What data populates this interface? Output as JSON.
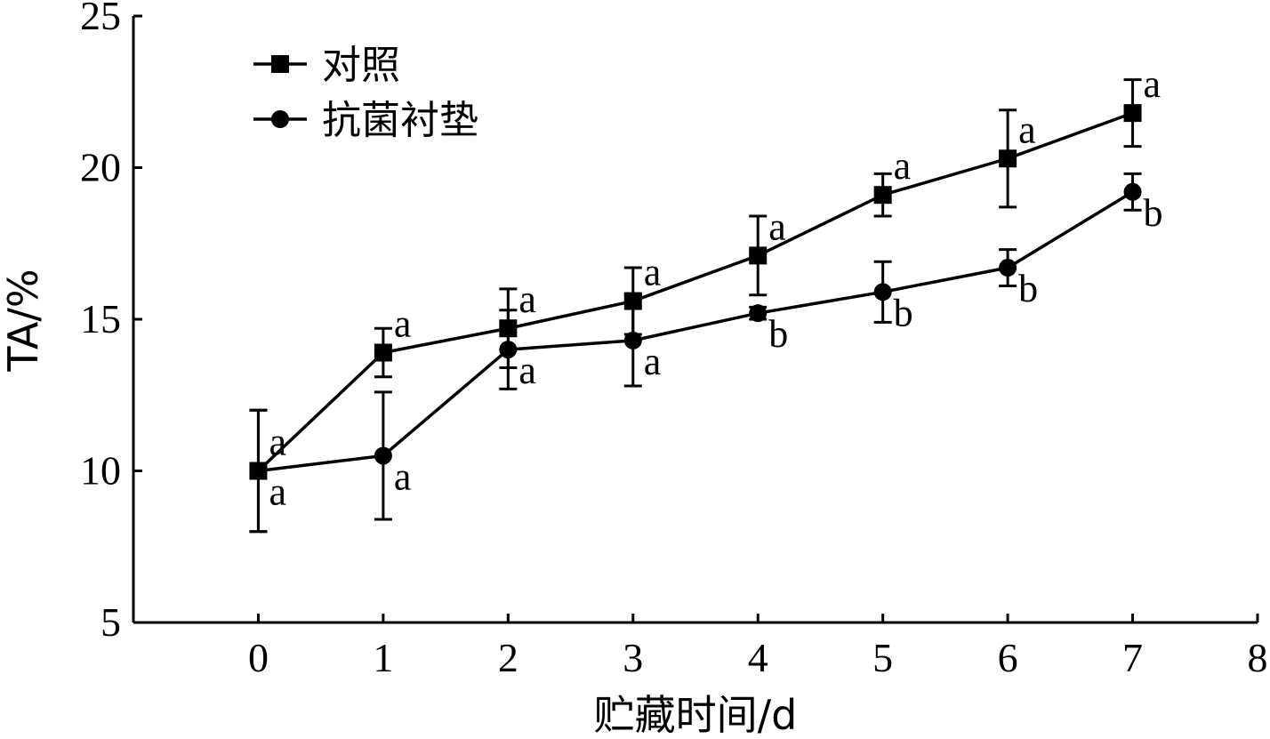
{
  "chart_data": {
    "type": "line",
    "title": "",
    "xlabel": "贮藏时间/d",
    "ylabel": "TA/%",
    "xlim": [
      -1,
      8
    ],
    "ylim": [
      5,
      25
    ],
    "xticks": [
      0,
      1,
      2,
      3,
      4,
      5,
      6,
      7,
      8
    ],
    "yticks": [
      5,
      10,
      15,
      20,
      25
    ],
    "grid": false,
    "legend_position": "top-left",
    "x": [
      0,
      1,
      2,
      3,
      4,
      5,
      6,
      7
    ],
    "series": [
      {
        "name": "对照",
        "marker": "square",
        "values": [
          10.0,
          13.9,
          14.7,
          15.6,
          17.1,
          19.1,
          20.3,
          21.8
        ],
        "errors": [
          2.0,
          0.8,
          1.3,
          1.1,
          1.3,
          0.7,
          1.6,
          1.1
        ],
        "labels": [
          "a",
          "a",
          "a",
          "a",
          "a",
          "a",
          "a",
          "a"
        ]
      },
      {
        "name": "抗菌衬垫",
        "marker": "circle",
        "values": [
          10.0,
          10.5,
          14.0,
          14.3,
          15.2,
          15.9,
          16.7,
          19.2
        ],
        "errors": [
          2.0,
          2.1,
          1.3,
          1.5,
          0.2,
          1.0,
          0.6,
          0.6
        ],
        "labels": [
          "a",
          "a",
          "a",
          "a",
          "b",
          "b",
          "b",
          "b"
        ]
      }
    ]
  }
}
